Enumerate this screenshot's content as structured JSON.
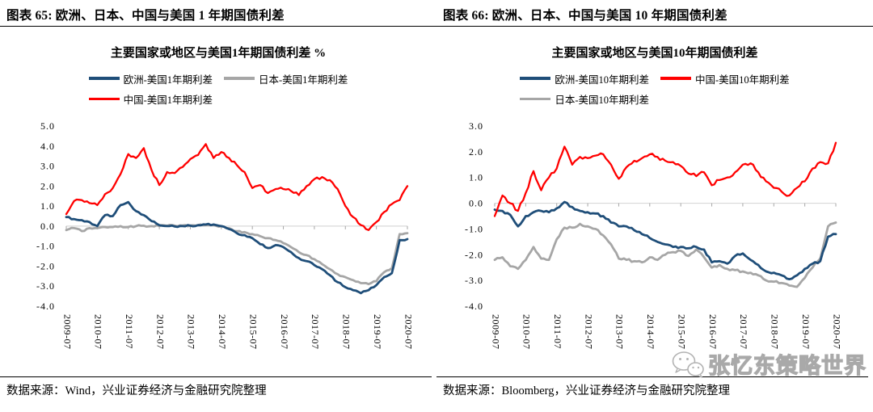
{
  "panels": [
    {
      "header": "图表 65: 欧洲、日本、中国与美国 1 年期国债利差",
      "source": "数据来源：Wind，兴业证券经济与金融研究院整理"
    },
    {
      "header": "图表 66: 欧洲、日本、中国与美国 10 年期国债利差",
      "source": "数据来源：Bloomberg，兴业证券经济与金融研究院整理"
    }
  ],
  "watermark": {
    "icon": "wechat-icon",
    "text": "张忆东策略世界"
  },
  "colors": {
    "europe_line": "#1F4E79",
    "japan_line": "#A6A6A6",
    "china_line": "#FF0000",
    "zero_line": "#D9D9D9",
    "axis_tick": "#A6A6A6",
    "header_rule": "#000000"
  },
  "chart_data": [
    {
      "type": "line",
      "title": "主要国家或地区与美国1年期国债利差 %",
      "legend_position": "top",
      "grid": "zero-line-only",
      "ylim": [
        -4.0,
        5.0
      ],
      "yticks": [
        {
          "v": 5.0,
          "label": "5.0"
        },
        {
          "v": 4.0,
          "label": "4.0"
        },
        {
          "v": 3.0,
          "label": "3.0"
        },
        {
          "v": 2.0,
          "label": "2.0"
        },
        {
          "v": 1.0,
          "label": "1.0"
        },
        {
          "v": 0.0,
          "label": "0.0"
        },
        {
          "v": -1.0,
          "label": "-1.0"
        },
        {
          "v": -2.0,
          "label": "-2.0"
        },
        {
          "v": -3.0,
          "label": "-3.0"
        },
        {
          "v": -4.0,
          "label": "-4.0"
        }
      ],
      "x_labels": [
        "2009-07",
        "2010-07",
        "2011-07",
        "2012-07",
        "2013-07",
        "2014-07",
        "2015-07",
        "2016-07",
        "2017-07",
        "2018-07",
        "2019-07",
        "2020-07"
      ],
      "x_sampling": "quarterly from 2009-07 to 2020-07",
      "series": [
        {
          "name": "欧洲-美国1年期利差",
          "color": "#1F4E79",
          "z": 2,
          "values": [
            0.45,
            0.35,
            0.3,
            0.2,
            0.0,
            0.55,
            0.5,
            1.05,
            1.2,
            0.75,
            0.55,
            0.25,
            0.05,
            0.0,
            -0.02,
            0.0,
            0.02,
            0.05,
            0.08,
            0.08,
            0.0,
            -0.15,
            -0.35,
            -0.45,
            -0.6,
            -0.9,
            -1.1,
            -0.95,
            -1.05,
            -1.3,
            -1.6,
            -1.75,
            -1.95,
            -2.15,
            -2.45,
            -2.8,
            -3.05,
            -3.2,
            -3.35,
            -3.2,
            -2.95,
            -2.55,
            -2.35,
            -0.7,
            -0.65
          ]
        },
        {
          "name": "日本-美国1年期利差",
          "color": "#A6A6A6",
          "z": 1,
          "values": [
            -0.2,
            -0.1,
            -0.25,
            -0.1,
            -0.1,
            -0.05,
            -0.05,
            0.0,
            -0.05,
            0.0,
            0.02,
            0.0,
            0.0,
            0.02,
            0.02,
            0.03,
            0.03,
            0.05,
            0.05,
            0.05,
            0.0,
            -0.1,
            -0.25,
            -0.3,
            -0.4,
            -0.5,
            -0.6,
            -0.7,
            -0.85,
            -1.05,
            -1.3,
            -1.45,
            -1.65,
            -1.9,
            -2.15,
            -2.4,
            -2.55,
            -2.7,
            -2.85,
            -2.9,
            -2.75,
            -2.3,
            -2.1,
            -0.4,
            -0.35
          ]
        },
        {
          "name": "中国-美国1年期利差",
          "color": "#FF0000",
          "z": 3,
          "values": [
            0.6,
            1.25,
            1.3,
            1.15,
            1.05,
            1.6,
            1.9,
            2.6,
            3.6,
            3.4,
            3.9,
            2.8,
            2.05,
            2.7,
            2.65,
            2.95,
            3.35,
            3.55,
            4.1,
            3.4,
            3.7,
            3.4,
            3.05,
            2.7,
            1.9,
            2.05,
            1.65,
            1.85,
            1.85,
            1.75,
            1.55,
            2.0,
            2.35,
            2.45,
            2.3,
            1.85,
            1.0,
            0.45,
            0.05,
            -0.2,
            0.2,
            0.7,
            1.1,
            1.3,
            2.0
          ]
        }
      ]
    },
    {
      "type": "line",
      "title": "主要国家或地区与美国10年期国债利差",
      "legend_position": "top",
      "grid": "zero-line-only",
      "ylim": [
        -4.0,
        3.0
      ],
      "yticks": [
        {
          "v": 3.0,
          "label": "3.0"
        },
        {
          "v": 2.0,
          "label": "2.0"
        },
        {
          "v": 1.0,
          "label": "1.0"
        },
        {
          "v": 0.0,
          "label": "0.0"
        },
        {
          "v": -1.0,
          "label": "-1.0"
        },
        {
          "v": -2.0,
          "label": "-2.0"
        },
        {
          "v": -3.0,
          "label": "-3.0"
        },
        {
          "v": -4.0,
          "label": "-4.0"
        }
      ],
      "x_labels": [
        "2009-07",
        "2010-07",
        "2011-07",
        "2012-07",
        "2013-07",
        "2014-07",
        "2015-07",
        "2016-07",
        "2017-07",
        "2018-07",
        "2019-07",
        "2020-07"
      ],
      "x_sampling": "quarterly from 2009-07 to 2020-07",
      "series": [
        {
          "name": "欧洲-美国10年期利差",
          "color": "#1F4E79",
          "z": 2,
          "values": [
            -0.25,
            -0.3,
            -0.45,
            -0.9,
            -0.5,
            -0.35,
            -0.3,
            -0.35,
            -0.2,
            0.05,
            -0.15,
            -0.3,
            -0.35,
            -0.4,
            -0.5,
            -0.75,
            -0.9,
            -0.9,
            -1.05,
            -1.2,
            -1.35,
            -1.5,
            -1.6,
            -1.7,
            -1.7,
            -1.75,
            -1.7,
            -1.8,
            -2.3,
            -2.25,
            -2.35,
            -2.05,
            -1.95,
            -2.2,
            -2.4,
            -2.65,
            -2.7,
            -2.8,
            -2.95,
            -2.8,
            -2.55,
            -2.35,
            -2.25,
            -1.3,
            -1.2
          ]
        },
        {
          "name": "中国-美国10年期利差",
          "color": "#FF0000",
          "z": 3,
          "values": [
            -0.5,
            0.3,
            0.0,
            -0.3,
            0.4,
            1.25,
            0.5,
            1.0,
            1.35,
            2.2,
            1.5,
            1.8,
            1.75,
            1.85,
            1.9,
            1.5,
            0.95,
            1.4,
            1.65,
            1.75,
            1.9,
            1.8,
            1.65,
            1.6,
            1.45,
            1.15,
            1.05,
            1.2,
            0.7,
            0.9,
            1.0,
            1.2,
            1.5,
            1.55,
            1.2,
            0.85,
            0.6,
            0.45,
            0.3,
            0.6,
            0.85,
            1.35,
            1.6,
            1.55,
            2.35
          ]
        },
        {
          "name": "日本-美国10年期利差",
          "color": "#A6A6A6",
          "z": 1,
          "values": [
            -2.2,
            -2.1,
            -2.45,
            -2.55,
            -2.2,
            -1.7,
            -2.15,
            -2.2,
            -1.4,
            -0.95,
            -0.95,
            -0.8,
            -0.9,
            -1.0,
            -1.25,
            -1.6,
            -2.15,
            -2.2,
            -2.25,
            -2.3,
            -2.1,
            -2.2,
            -2.0,
            -1.9,
            -1.85,
            -2.05,
            -1.8,
            -2.1,
            -2.5,
            -2.4,
            -2.55,
            -2.6,
            -2.65,
            -2.7,
            -2.8,
            -3.0,
            -3.05,
            -3.1,
            -3.2,
            -3.25,
            -2.9,
            -2.5,
            -2.15,
            -0.9,
            -0.75
          ]
        }
      ]
    }
  ]
}
